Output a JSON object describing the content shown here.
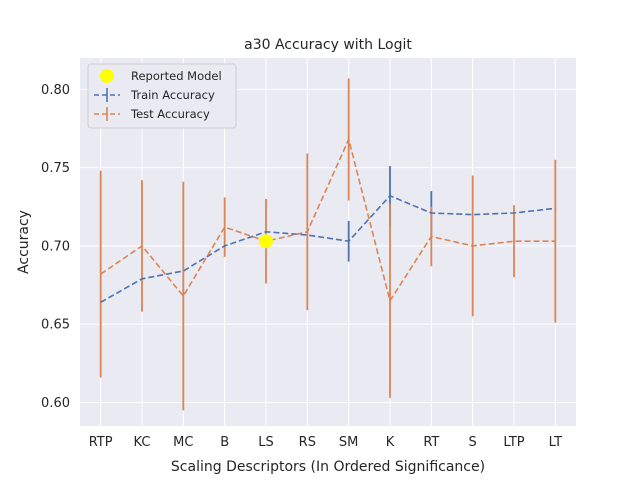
{
  "chart_data": {
    "type": "line",
    "title": "a30 Accuracy with Logit",
    "xlabel": "Scaling Descriptors (In Ordered Significance)",
    "ylabel": "Accuracy",
    "categories": [
      "RTP",
      "KC",
      "MC",
      "B",
      "LS",
      "RS",
      "SM",
      "K",
      "RT",
      "S",
      "LTP",
      "LT"
    ],
    "ylim": [
      0.585,
      0.82
    ],
    "yticks": [
      0.6,
      0.65,
      0.7,
      0.75,
      0.8
    ],
    "ytick_labels": [
      "0.60",
      "0.65",
      "0.70",
      "0.75",
      "0.80"
    ],
    "grid": true,
    "legend_position": "top-left",
    "series": [
      {
        "name": "Train Accuracy",
        "color": "#4c72b0",
        "linestyle": "dashed",
        "values": [
          0.664,
          0.679,
          0.684,
          0.7,
          0.709,
          0.707,
          0.703,
          0.732,
          0.721,
          0.72,
          0.721,
          0.724
        ],
        "errors": [
          0.0,
          0.0,
          0.0,
          0.0,
          0.0,
          0.0,
          0.013,
          0.019,
          0.014,
          0.0,
          0.0,
          0.0
        ]
      },
      {
        "name": "Test Accuracy",
        "color": "#dd8452",
        "linestyle": "dashed",
        "values": [
          0.682,
          0.7,
          0.668,
          0.712,
          0.703,
          0.709,
          0.768,
          0.665,
          0.706,
          0.7,
          0.703,
          0.703
        ],
        "errors": [
          0.066,
          0.042,
          0.073,
          0.019,
          0.027,
          0.05,
          0.039,
          0.062,
          0.019,
          0.045,
          0.023,
          0.052
        ]
      }
    ],
    "highlight": {
      "name": "Reported Model",
      "category": "LS",
      "value": 0.703,
      "color": "#ffff00"
    }
  }
}
